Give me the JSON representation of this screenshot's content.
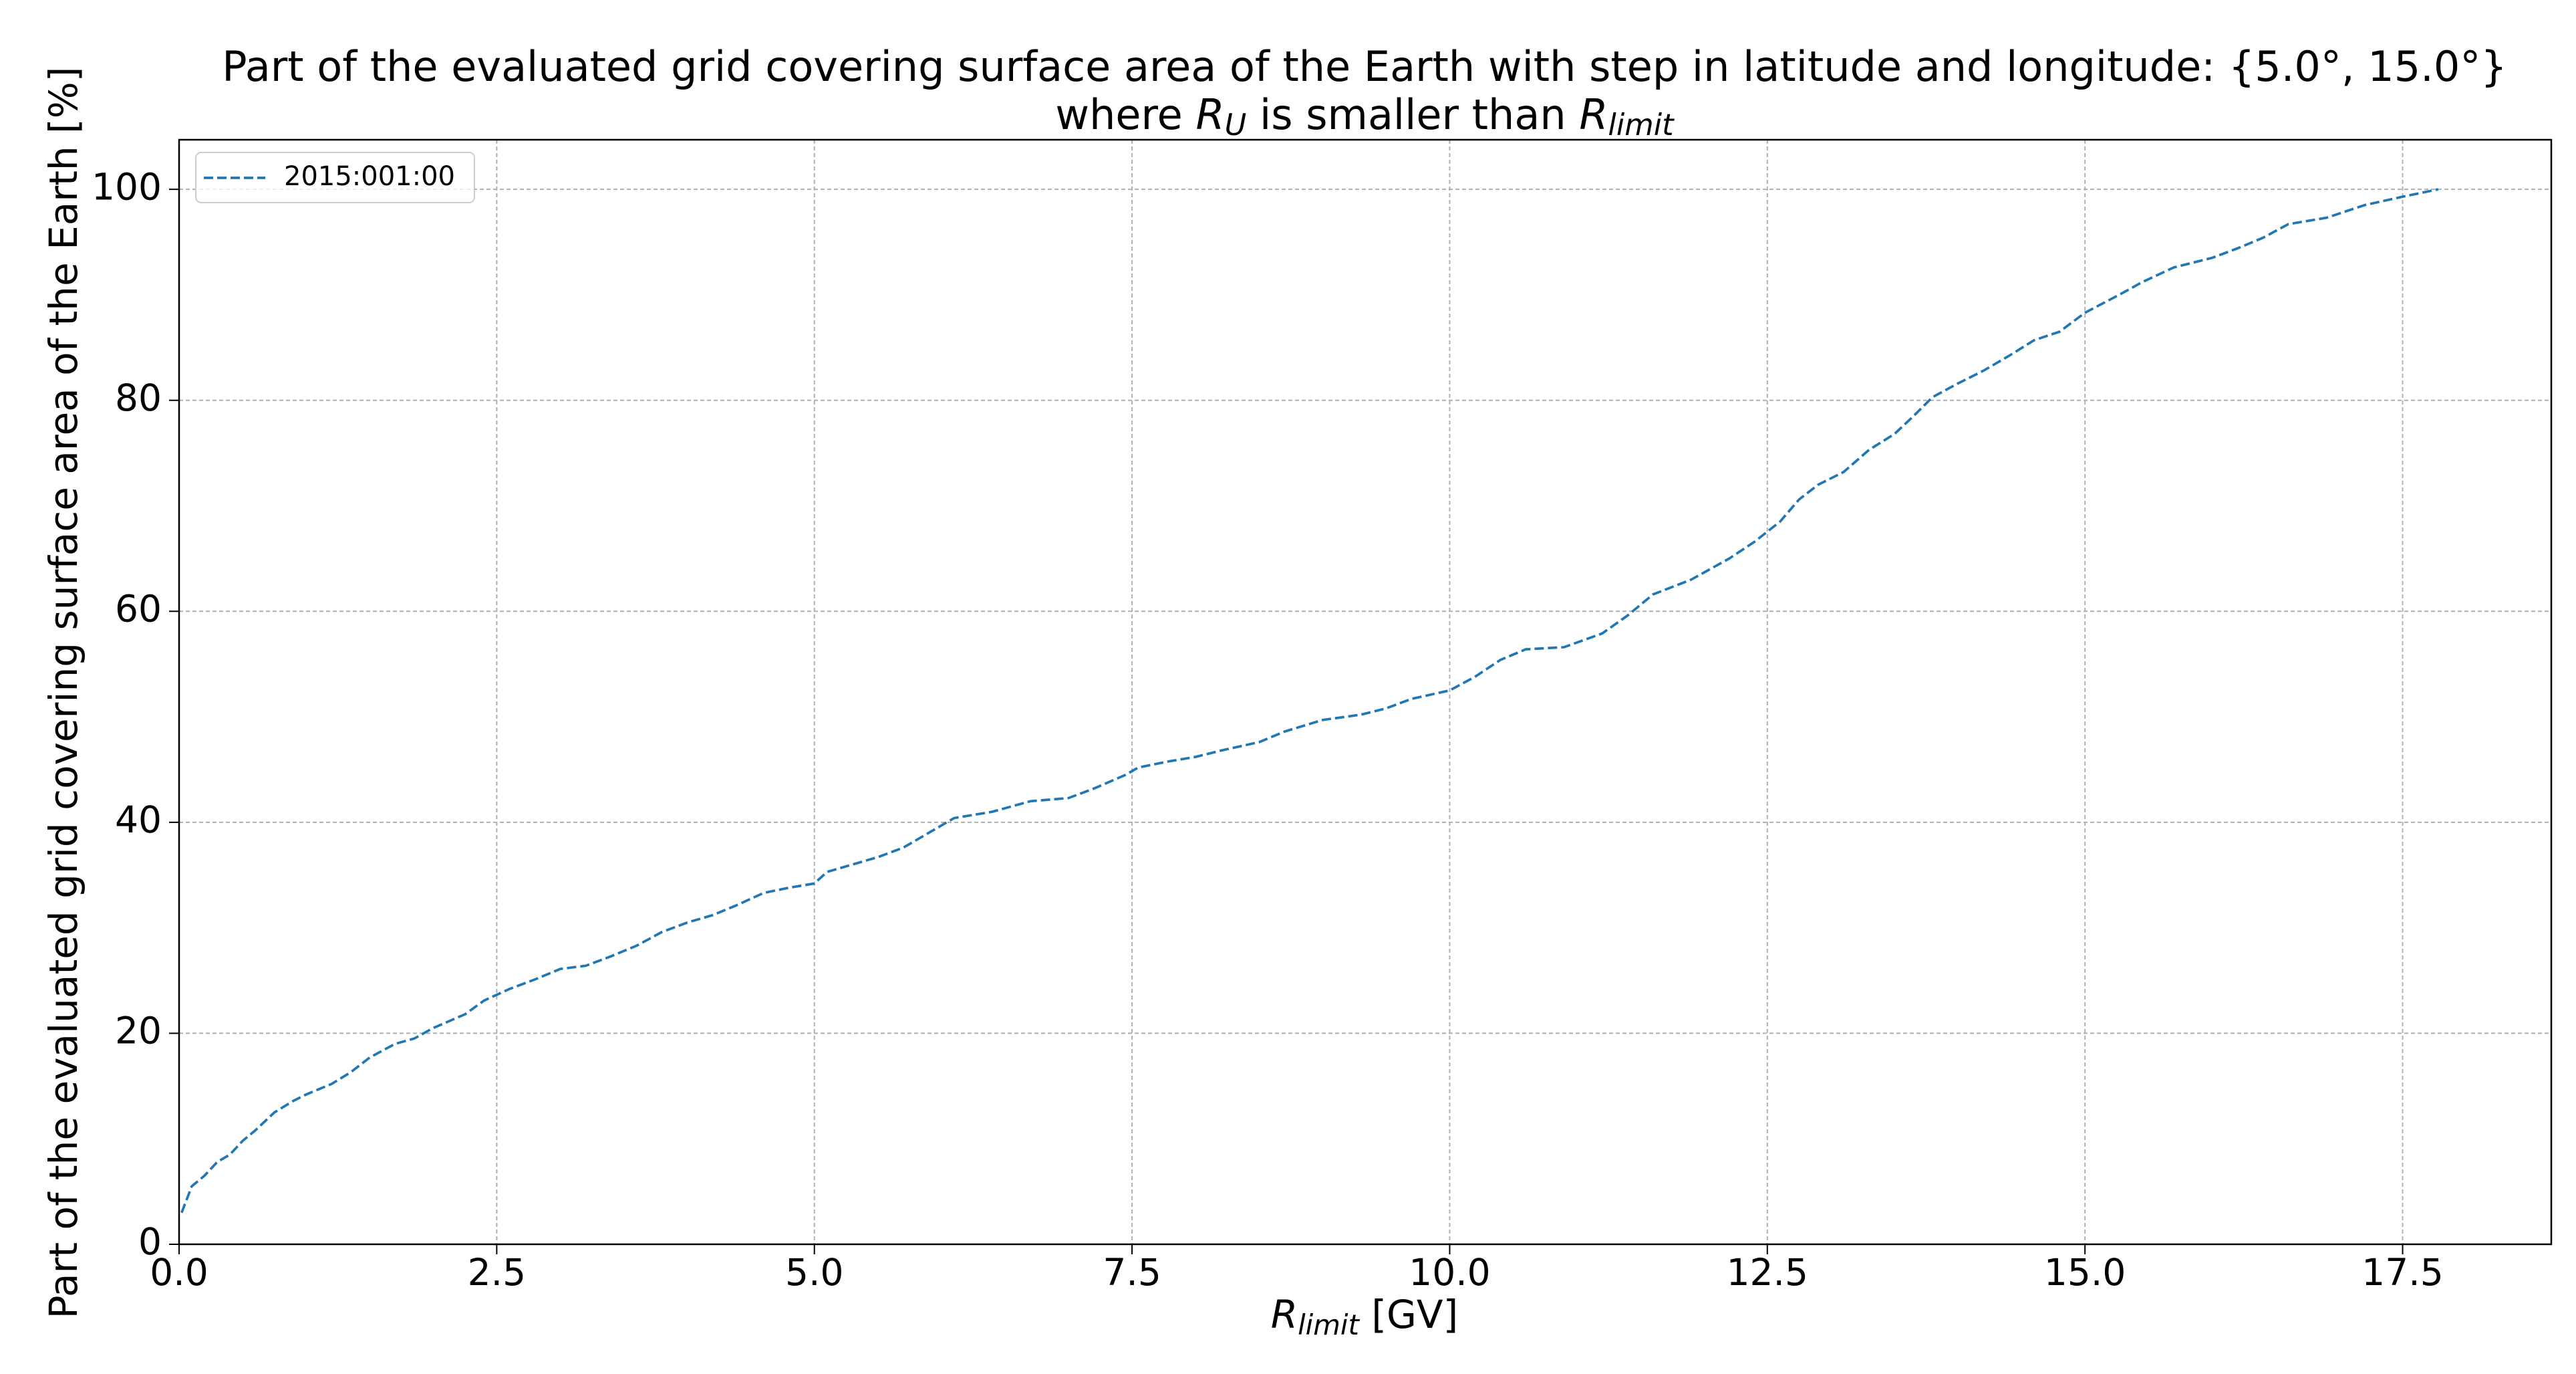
{
  "chart_data": {
    "type": "line",
    "title": "Part of the evaluated grid covering surface area of the Earth with step in latitude and longitude: {5.0°, 15.0°}",
    "subtitle": [
      {
        "text": "where "
      },
      {
        "text": "R",
        "italic": true
      },
      {
        "text": "U",
        "italic": true,
        "sub": true
      },
      {
        "text": " is smaller than "
      },
      {
        "text": "R",
        "italic": true
      },
      {
        "text": "limit",
        "italic": true,
        "sub": true
      }
    ],
    "xlabel": [
      {
        "text": "R",
        "italic": true
      },
      {
        "text": "limit",
        "italic": true,
        "sub": true
      },
      {
        "text": " [GV]"
      }
    ],
    "ylabel": "Part of the evaluated grid covering surface area of the Earth  [%]",
    "x": [
      0.02,
      0.1,
      0.2,
      0.3,
      0.4,
      0.5,
      0.6,
      0.75,
      0.9,
      1.0,
      1.2,
      1.35,
      1.5,
      1.7,
      1.85,
      2.0,
      2.25,
      2.4,
      2.6,
      2.8,
      3.0,
      3.2,
      3.4,
      3.6,
      3.8,
      4.0,
      4.2,
      4.4,
      4.6,
      4.8,
      5.0,
      5.1,
      5.3,
      5.5,
      5.7,
      5.9,
      6.1,
      6.4,
      6.7,
      7.0,
      7.2,
      7.45,
      7.55,
      7.8,
      8.0,
      8.2,
      8.5,
      8.7,
      9.0,
      9.3,
      9.5,
      9.7,
      10.0,
      10.2,
      10.4,
      10.6,
      10.9,
      11.2,
      11.4,
      11.6,
      11.9,
      12.2,
      12.4,
      12.6,
      12.75,
      12.9,
      13.1,
      13.3,
      13.5,
      13.65,
      13.8,
      14.0,
      14.2,
      14.4,
      14.6,
      14.8,
      15.0,
      15.3,
      15.45,
      15.7,
      16.0,
      16.2,
      16.4,
      16.6,
      16.9,
      17.2,
      17.5,
      17.78
    ],
    "series": [
      {
        "name": "2015:001:00",
        "color": "#1f77b4",
        "dashed": true,
        "values": [
          3,
          5.5,
          6.5,
          7.8,
          8.5,
          9.8,
          10.8,
          12.5,
          13.6,
          14.2,
          15.2,
          16.3,
          17.7,
          19,
          19.5,
          20.5,
          21.8,
          23.1,
          24.2,
          25.1,
          26.1,
          26.4,
          27.3,
          28.3,
          29.6,
          30.5,
          31.2,
          32.2,
          33.3,
          33.8,
          34.2,
          35.3,
          36,
          36.7,
          37.6,
          39,
          40.4,
          41,
          42,
          42.3,
          43.2,
          44.5,
          45.2,
          45.8,
          46.2,
          46.8,
          47.6,
          48.6,
          49.7,
          50.2,
          50.8,
          51.7,
          52.5,
          53.8,
          55.4,
          56.4,
          56.6,
          57.9,
          59.6,
          61.6,
          63,
          65,
          66.6,
          68.5,
          70.6,
          72,
          73.2,
          75.3,
          76.8,
          78.5,
          80.3,
          81.6,
          82.8,
          84.2,
          85.7,
          86.5,
          88.3,
          90.2,
          91.2,
          92.6,
          93.5,
          94.4,
          95.4,
          96.7,
          97.3,
          98.5,
          99.3,
          100
        ]
      }
    ],
    "xlim": [
      0,
      18.67
    ],
    "ylim": [
      0,
      104.7
    ],
    "xticks": [
      {
        "value": 0,
        "label": "0.0"
      },
      {
        "value": 2.5,
        "label": "2.5"
      },
      {
        "value": 5,
        "label": "5.0"
      },
      {
        "value": 7.5,
        "label": "7.5"
      },
      {
        "value": 10,
        "label": "10.0"
      },
      {
        "value": 12.5,
        "label": "12.5"
      },
      {
        "value": 15,
        "label": "15.0"
      },
      {
        "value": 17.5,
        "label": "17.5"
      }
    ],
    "yticks": [
      0,
      20,
      40,
      60,
      80,
      100
    ],
    "grid": true,
    "legend": "upper left"
  }
}
